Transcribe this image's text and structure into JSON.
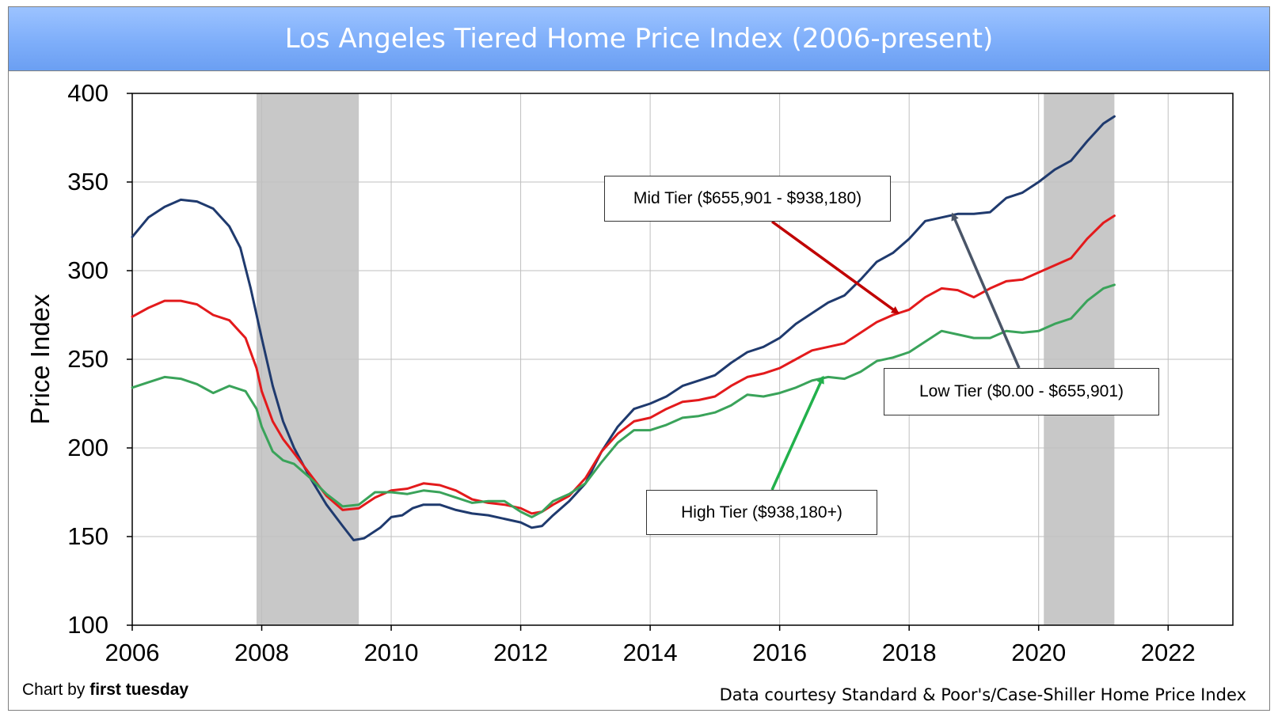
{
  "title": "Los Angeles Tiered Home Price Index (2006-present)",
  "credit_left_prefix": "Chart by ",
  "credit_left_brand": "first tuesday",
  "credit_right": "Data courtesy Standard & Poor's/Case-Shiller Home Price Index",
  "colors": {
    "low": "#1f3a6e",
    "mid": "#e31a1c",
    "high": "#3aa35a",
    "recession": "#c8c8c8",
    "low_arrow": "#4a5568",
    "mid_arrow": "#c00000",
    "high_arrow": "#22b14c"
  },
  "chart_data": {
    "type": "line",
    "title": "Los Angeles Tiered Home Price Index (2006-present)",
    "xlabel": "",
    "ylabel": "Price Index",
    "xlim": [
      2006,
      2023
    ],
    "ylim": [
      100,
      400
    ],
    "x_ticks": [
      "2006",
      "2008",
      "2010",
      "2012",
      "2014",
      "2016",
      "2018",
      "2020",
      "2022"
    ],
    "y_ticks": [
      "100",
      "150",
      "200",
      "250",
      "300",
      "350",
      "400"
    ],
    "grid": true,
    "recession_bands": [
      [
        2007.92,
        2009.5
      ],
      [
        2020.08,
        2021.17
      ]
    ],
    "series": [
      {
        "name": "Low Tier ($0.00 - $655,901)",
        "key": "low",
        "points": [
          [
            2006.0,
            319
          ],
          [
            2006.25,
            330
          ],
          [
            2006.5,
            336
          ],
          [
            2006.75,
            340
          ],
          [
            2007.0,
            339
          ],
          [
            2007.25,
            335
          ],
          [
            2007.5,
            325
          ],
          [
            2007.67,
            313
          ],
          [
            2007.83,
            290
          ],
          [
            2008.0,
            262
          ],
          [
            2008.17,
            235
          ],
          [
            2008.33,
            215
          ],
          [
            2008.5,
            200
          ],
          [
            2008.75,
            183
          ],
          [
            2009.0,
            168
          ],
          [
            2009.25,
            156
          ],
          [
            2009.42,
            148
          ],
          [
            2009.58,
            149
          ],
          [
            2009.83,
            155
          ],
          [
            2010.0,
            161
          ],
          [
            2010.17,
            162
          ],
          [
            2010.33,
            166
          ],
          [
            2010.5,
            168
          ],
          [
            2010.75,
            168
          ],
          [
            2011.0,
            165
          ],
          [
            2011.25,
            163
          ],
          [
            2011.5,
            162
          ],
          [
            2011.75,
            160
          ],
          [
            2012.0,
            158
          ],
          [
            2012.17,
            155
          ],
          [
            2012.33,
            156
          ],
          [
            2012.5,
            162
          ],
          [
            2012.75,
            170
          ],
          [
            2013.0,
            180
          ],
          [
            2013.25,
            198
          ],
          [
            2013.5,
            212
          ],
          [
            2013.75,
            222
          ],
          [
            2014.0,
            225
          ],
          [
            2014.25,
            229
          ],
          [
            2014.5,
            235
          ],
          [
            2014.75,
            238
          ],
          [
            2015.0,
            241
          ],
          [
            2015.25,
            248
          ],
          [
            2015.5,
            254
          ],
          [
            2015.75,
            257
          ],
          [
            2016.0,
            262
          ],
          [
            2016.25,
            270
          ],
          [
            2016.5,
            276
          ],
          [
            2016.75,
            282
          ],
          [
            2017.0,
            286
          ],
          [
            2017.25,
            295
          ],
          [
            2017.5,
            305
          ],
          [
            2017.75,
            310
          ],
          [
            2018.0,
            318
          ],
          [
            2018.25,
            328
          ],
          [
            2018.5,
            330
          ],
          [
            2018.75,
            332
          ],
          [
            2019.0,
            332
          ],
          [
            2019.25,
            333
          ],
          [
            2019.5,
            341
          ],
          [
            2019.75,
            344
          ],
          [
            2020.0,
            350
          ],
          [
            2020.25,
            357
          ],
          [
            2020.5,
            362
          ],
          [
            2020.75,
            373
          ],
          [
            2021.0,
            383
          ],
          [
            2021.17,
            387
          ]
        ]
      },
      {
        "name": "Mid Tier ($655,901 - $938,180)",
        "key": "mid",
        "points": [
          [
            2006.0,
            274
          ],
          [
            2006.25,
            279
          ],
          [
            2006.5,
            283
          ],
          [
            2006.75,
            283
          ],
          [
            2007.0,
            281
          ],
          [
            2007.25,
            275
          ],
          [
            2007.5,
            272
          ],
          [
            2007.75,
            262
          ],
          [
            2007.92,
            245
          ],
          [
            2008.0,
            232
          ],
          [
            2008.17,
            215
          ],
          [
            2008.33,
            205
          ],
          [
            2008.5,
            197
          ],
          [
            2008.75,
            185
          ],
          [
            2009.0,
            173
          ],
          [
            2009.25,
            165
          ],
          [
            2009.5,
            166
          ],
          [
            2009.75,
            172
          ],
          [
            2010.0,
            176
          ],
          [
            2010.25,
            177
          ],
          [
            2010.5,
            180
          ],
          [
            2010.75,
            179
          ],
          [
            2011.0,
            176
          ],
          [
            2011.25,
            171
          ],
          [
            2011.5,
            169
          ],
          [
            2011.75,
            168
          ],
          [
            2012.0,
            166
          ],
          [
            2012.17,
            163
          ],
          [
            2012.33,
            164
          ],
          [
            2012.5,
            168
          ],
          [
            2012.75,
            173
          ],
          [
            2013.0,
            183
          ],
          [
            2013.25,
            198
          ],
          [
            2013.5,
            208
          ],
          [
            2013.75,
            215
          ],
          [
            2014.0,
            217
          ],
          [
            2014.25,
            222
          ],
          [
            2014.5,
            226
          ],
          [
            2014.75,
            227
          ],
          [
            2015.0,
            229
          ],
          [
            2015.25,
            235
          ],
          [
            2015.5,
            240
          ],
          [
            2015.75,
            242
          ],
          [
            2016.0,
            245
          ],
          [
            2016.25,
            250
          ],
          [
            2016.5,
            255
          ],
          [
            2016.75,
            257
          ],
          [
            2017.0,
            259
          ],
          [
            2017.25,
            265
          ],
          [
            2017.5,
            271
          ],
          [
            2017.75,
            275
          ],
          [
            2018.0,
            278
          ],
          [
            2018.25,
            285
          ],
          [
            2018.5,
            290
          ],
          [
            2018.75,
            289
          ],
          [
            2019.0,
            285
          ],
          [
            2019.25,
            290
          ],
          [
            2019.5,
            294
          ],
          [
            2019.75,
            295
          ],
          [
            2020.0,
            299
          ],
          [
            2020.25,
            303
          ],
          [
            2020.5,
            307
          ],
          [
            2020.75,
            318
          ],
          [
            2021.0,
            327
          ],
          [
            2021.17,
            331
          ]
        ]
      },
      {
        "name": "High Tier ($938,180+)",
        "key": "high",
        "points": [
          [
            2006.0,
            234
          ],
          [
            2006.25,
            237
          ],
          [
            2006.5,
            240
          ],
          [
            2006.75,
            239
          ],
          [
            2007.0,
            236
          ],
          [
            2007.25,
            231
          ],
          [
            2007.5,
            235
          ],
          [
            2007.75,
            232
          ],
          [
            2007.92,
            222
          ],
          [
            2008.0,
            212
          ],
          [
            2008.17,
            198
          ],
          [
            2008.33,
            193
          ],
          [
            2008.5,
            191
          ],
          [
            2008.75,
            183
          ],
          [
            2009.0,
            174
          ],
          [
            2009.25,
            167
          ],
          [
            2009.5,
            168
          ],
          [
            2009.75,
            175
          ],
          [
            2010.0,
            175
          ],
          [
            2010.25,
            174
          ],
          [
            2010.5,
            176
          ],
          [
            2010.75,
            175
          ],
          [
            2011.0,
            172
          ],
          [
            2011.25,
            169
          ],
          [
            2011.5,
            170
          ],
          [
            2011.75,
            170
          ],
          [
            2012.0,
            164
          ],
          [
            2012.17,
            161
          ],
          [
            2012.33,
            164
          ],
          [
            2012.5,
            170
          ],
          [
            2012.75,
            174
          ],
          [
            2013.0,
            180
          ],
          [
            2013.25,
            192
          ],
          [
            2013.5,
            203
          ],
          [
            2013.75,
            210
          ],
          [
            2014.0,
            210
          ],
          [
            2014.25,
            213
          ],
          [
            2014.5,
            217
          ],
          [
            2014.75,
            218
          ],
          [
            2015.0,
            220
          ],
          [
            2015.25,
            224
          ],
          [
            2015.5,
            230
          ],
          [
            2015.75,
            229
          ],
          [
            2016.0,
            231
          ],
          [
            2016.25,
            234
          ],
          [
            2016.5,
            238
          ],
          [
            2016.75,
            240
          ],
          [
            2017.0,
            239
          ],
          [
            2017.25,
            243
          ],
          [
            2017.5,
            249
          ],
          [
            2017.75,
            251
          ],
          [
            2018.0,
            254
          ],
          [
            2018.25,
            260
          ],
          [
            2018.5,
            266
          ],
          [
            2018.75,
            264
          ],
          [
            2019.0,
            262
          ],
          [
            2019.25,
            262
          ],
          [
            2019.5,
            266
          ],
          [
            2019.75,
            265
          ],
          [
            2020.0,
            266
          ],
          [
            2020.25,
            270
          ],
          [
            2020.5,
            273
          ],
          [
            2020.75,
            283
          ],
          [
            2021.0,
            290
          ],
          [
            2021.17,
            292
          ]
        ]
      }
    ],
    "annotations": [
      {
        "label": "Mid Tier ($655,901 - $938,180)",
        "series": "mid",
        "target": [
          2017.83,
          276
        ]
      },
      {
        "label": "Low Tier ($0.00 - $655,901)",
        "series": "low",
        "target": [
          2018.67,
          332
        ]
      },
      {
        "label": "High Tier ($938,180+)",
        "series": "high",
        "target": [
          2016.67,
          240
        ]
      }
    ]
  }
}
